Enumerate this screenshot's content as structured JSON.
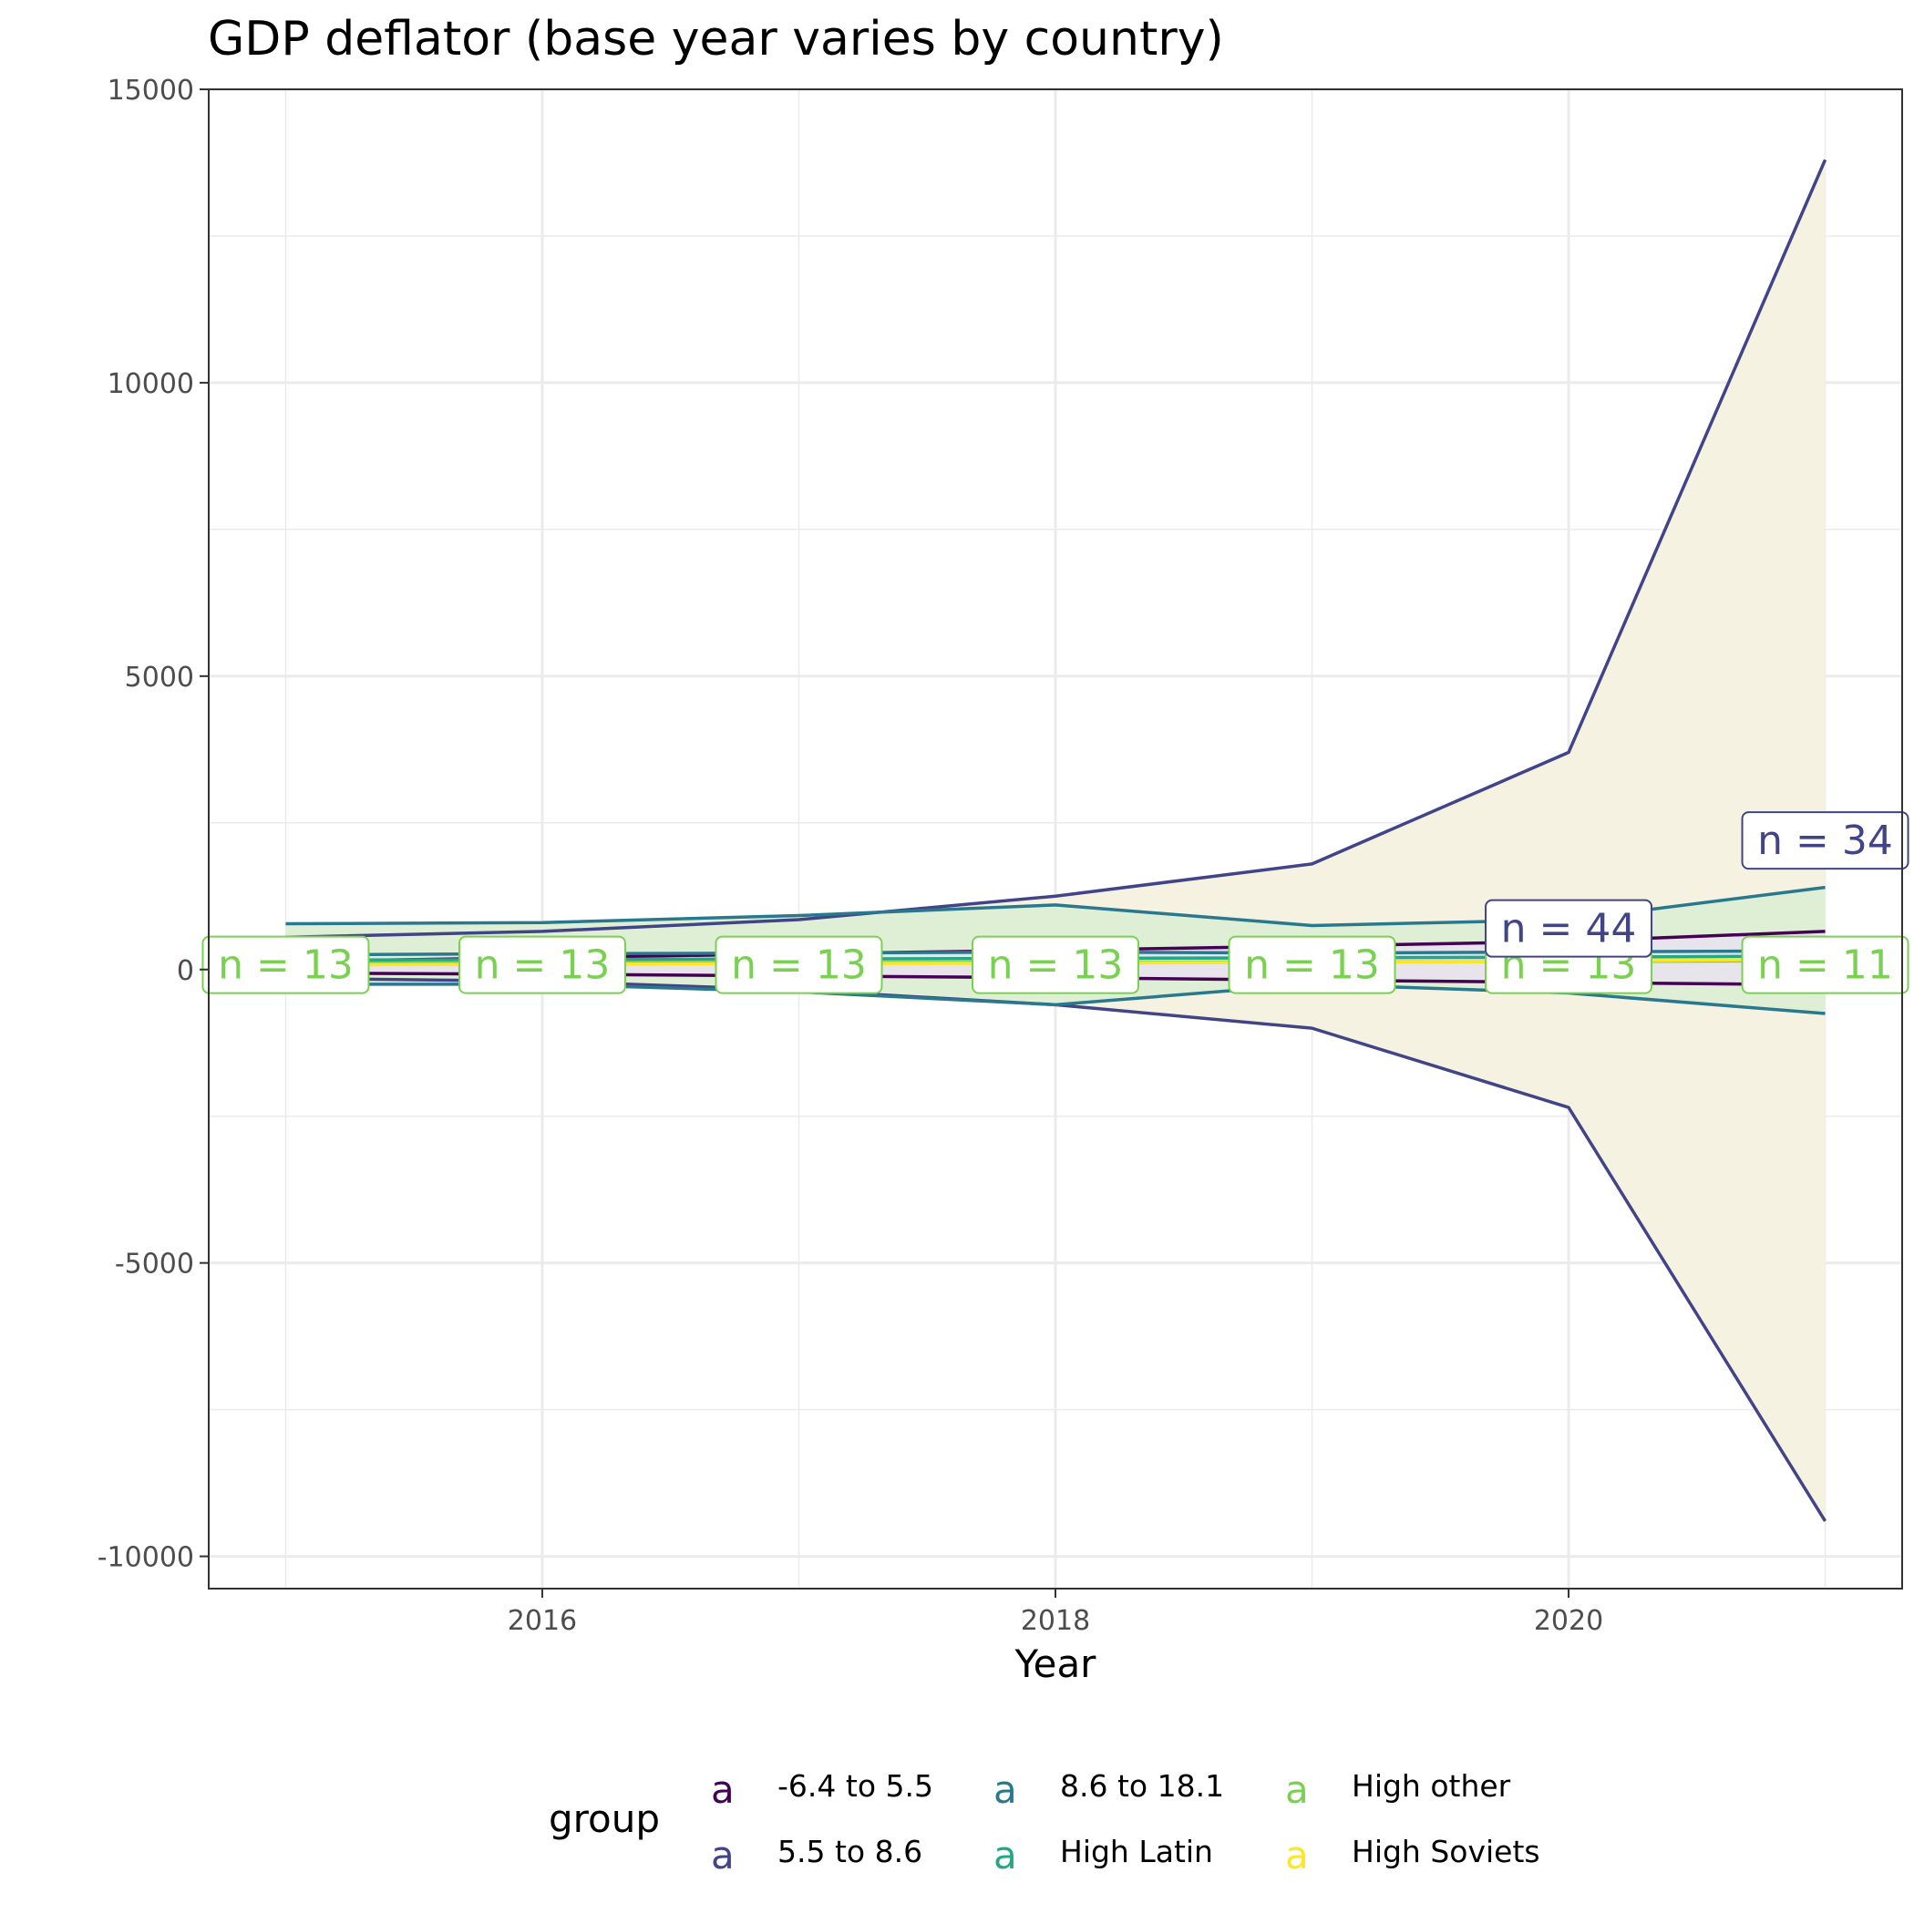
{
  "chart_data": {
    "type": "line",
    "title": "GDP deflator (base year varies by country)",
    "xlabel": "Year",
    "ylabel": "",
    "xlim": [
      2014.7,
      2021.3
    ],
    "ylim": [
      -10550,
      15000
    ],
    "x_ticks": [
      2016,
      2018,
      2020
    ],
    "x_tick_labels": [
      "2016",
      "2018",
      "2020"
    ],
    "y_ticks": [
      -10000,
      -5000,
      0,
      5000,
      10000,
      15000
    ],
    "y_tick_labels": [
      "-10000",
      "-5000",
      "0",
      "5000",
      "10000",
      "15000"
    ],
    "grid": true,
    "legend": {
      "title": "group",
      "position": "bottom",
      "key_glyph": "a",
      "entries": [
        {
          "label": "-6.4 to 5.5",
          "color": "#440154"
        },
        {
          "label": "5.5 to 8.6",
          "color": "#414487"
        },
        {
          "label": "8.6 to 18.1",
          "color": "#2A788E"
        },
        {
          "label": "High Latin",
          "color": "#22A884"
        },
        {
          "label": "High other",
          "color": "#7AD151"
        },
        {
          "label": "High Soviets",
          "color": "#FDE725"
        }
      ]
    },
    "x": [
      2015,
      2016,
      2017,
      2018,
      2019,
      2020,
      2021
    ],
    "bands": [
      {
        "series": "5.5 to 8.6",
        "fill": "#F5F2E2",
        "lower": [
          -150,
          -200,
          -350,
          -600,
          -1000,
          -2350,
          -9400
        ],
        "upper": [
          550,
          650,
          850,
          1250,
          1800,
          3700,
          13800
        ]
      },
      {
        "series": "8.6 to 18.1",
        "fill": "#DFEFD6",
        "lower": [
          -250,
          -250,
          -380,
          -600,
          -250,
          -400,
          -750
        ],
        "upper": [
          780,
          800,
          920,
          1100,
          750,
          850,
          1400
        ]
      },
      {
        "series": "-6.4 to 5.5",
        "fill": "#E8E4EC",
        "lower": [
          -60,
          -80,
          -110,
          -140,
          -180,
          -220,
          -260
        ],
        "upper": [
          140,
          200,
          270,
          330,
          400,
          480,
          650
        ]
      }
    ],
    "series": [
      {
        "name": "5.5 to 8.6",
        "color": "#414487",
        "stat": "upper",
        "values": [
          550,
          650,
          850,
          1250,
          1800,
          3700,
          13800
        ]
      },
      {
        "name": "5.5 to 8.6",
        "color": "#414487",
        "stat": "lower",
        "values": [
          -150,
          -200,
          -350,
          -600,
          -1000,
          -2350,
          -9400
        ]
      },
      {
        "name": "8.6 to 18.1",
        "color": "#2A788E",
        "stat": "upper",
        "values": [
          780,
          800,
          920,
          1100,
          750,
          850,
          1400
        ]
      },
      {
        "name": "8.6 to 18.1",
        "color": "#2A788E",
        "stat": "lower",
        "values": [
          -250,
          -250,
          -380,
          -600,
          -250,
          -400,
          -750
        ]
      },
      {
        "name": "-6.4 to 5.5",
        "color": "#440154",
        "stat": "upper",
        "values": [
          140,
          200,
          270,
          330,
          400,
          480,
          650
        ]
      },
      {
        "name": "-6.4 to 5.5",
        "color": "#440154",
        "stat": "lower",
        "values": [
          -60,
          -80,
          -110,
          -140,
          -180,
          -220,
          -260
        ]
      },
      {
        "name": "8.6 to 18.1",
        "color": "#2A788E",
        "stat": "mean",
        "values": [
          250,
          270,
          280,
          300,
          280,
          300,
          320
        ]
      },
      {
        "name": "High Latin",
        "color": "#22A884",
        "stat": "mean",
        "values": [
          160,
          170,
          180,
          190,
          200,
          210,
          230
        ]
      },
      {
        "name": "High other",
        "color": "#7AD151",
        "stat": "mean",
        "values": [
          110,
          115,
          120,
          125,
          130,
          135,
          150
        ]
      },
      {
        "name": "High Soviets",
        "color": "#FDE725",
        "stat": "mean",
        "values": [
          80,
          90,
          100,
          110,
          120,
          140,
          180
        ]
      }
    ],
    "labels": [
      {
        "x": 2015,
        "y": 80,
        "text": "n = 13",
        "color": "#7AD151"
      },
      {
        "x": 2016,
        "y": 80,
        "text": "n = 13",
        "color": "#7AD151"
      },
      {
        "x": 2017,
        "y": 80,
        "text": "n = 13",
        "color": "#7AD151"
      },
      {
        "x": 2018,
        "y": 80,
        "text": "n = 13",
        "color": "#7AD151"
      },
      {
        "x": 2019,
        "y": 80,
        "text": "n = 13",
        "color": "#7AD151"
      },
      {
        "x": 2020,
        "y": 80,
        "text": "n = 13",
        "color": "#7AD151"
      },
      {
        "x": 2021,
        "y": 80,
        "text": "n = 11",
        "color": "#7AD151"
      },
      {
        "x": 2021,
        "y": 2200,
        "text": "n = 34",
        "color": "#414487"
      },
      {
        "x": 2020,
        "y": 700,
        "text": "n = 44",
        "color": "#414487"
      }
    ]
  }
}
